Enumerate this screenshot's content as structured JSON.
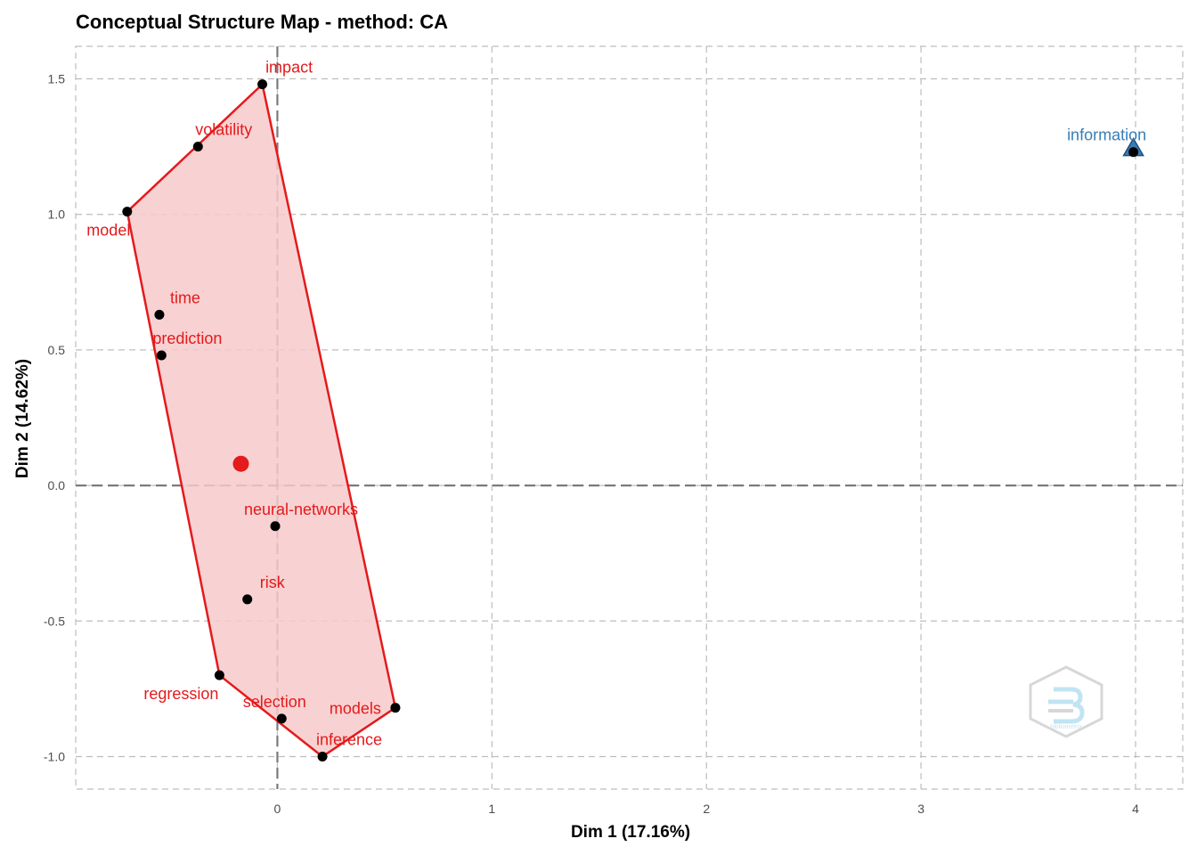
{
  "chart_data": {
    "type": "scatter",
    "title": "Conceptual Structure Map - method: CA",
    "xlabel": "Dim 1 (17.16%)",
    "ylabel": "Dim 2 (14.62%)",
    "xlim": [
      -0.94,
      4.22
    ],
    "ylim": [
      -1.12,
      1.62
    ],
    "xticks": [
      0,
      1,
      2,
      3,
      4
    ],
    "xtick_labels": [
      "0",
      "1",
      "2",
      "3",
      "4"
    ],
    "yticks": [
      -1.0,
      -0.5,
      0.0,
      0.5,
      1.0,
      1.5
    ],
    "ytick_labels": [
      "-1.0",
      "-0.5",
      "0.0",
      "0.5",
      "1.0",
      "1.5"
    ],
    "grid": true,
    "clusters": [
      {
        "color": "#e41a1c",
        "fill": "#f7caca",
        "hull": [
          "impact",
          "model",
          "regression",
          "inference",
          "models",
          "impact"
        ],
        "centroid": {
          "x": -0.17,
          "y": 0.08
        },
        "centroid_marker": "circle",
        "points": [
          {
            "label": "impact",
            "x": -0.07,
            "y": 1.48
          },
          {
            "label": "volatility",
            "x": -0.37,
            "y": 1.25
          },
          {
            "label": "model",
            "x": -0.7,
            "y": 1.01
          },
          {
            "label": "time",
            "x": -0.55,
            "y": 0.63
          },
          {
            "label": "prediction",
            "x": -0.54,
            "y": 0.48
          },
          {
            "label": "neural-networks",
            "x": -0.01,
            "y": -0.15
          },
          {
            "label": "risk",
            "x": -0.14,
            "y": -0.42
          },
          {
            "label": "regression",
            "x": -0.27,
            "y": -0.7
          },
          {
            "label": "selection",
            "x": 0.02,
            "y": -0.86
          },
          {
            "label": "models",
            "x": 0.55,
            "y": -0.82
          },
          {
            "label": "inference",
            "x": 0.21,
            "y": -1.0
          }
        ]
      },
      {
        "color": "#377eb8",
        "fill": "#377eb8",
        "hull": [],
        "centroid": {
          "x": 3.99,
          "y": 1.24
        },
        "centroid_marker": "triangle",
        "points": [
          {
            "label": "information",
            "x": 3.99,
            "y": 1.23
          }
        ]
      }
    ]
  },
  "watermark": {
    "icon": "bibliometrix-hex-logo",
    "text": "bibliometrix"
  }
}
